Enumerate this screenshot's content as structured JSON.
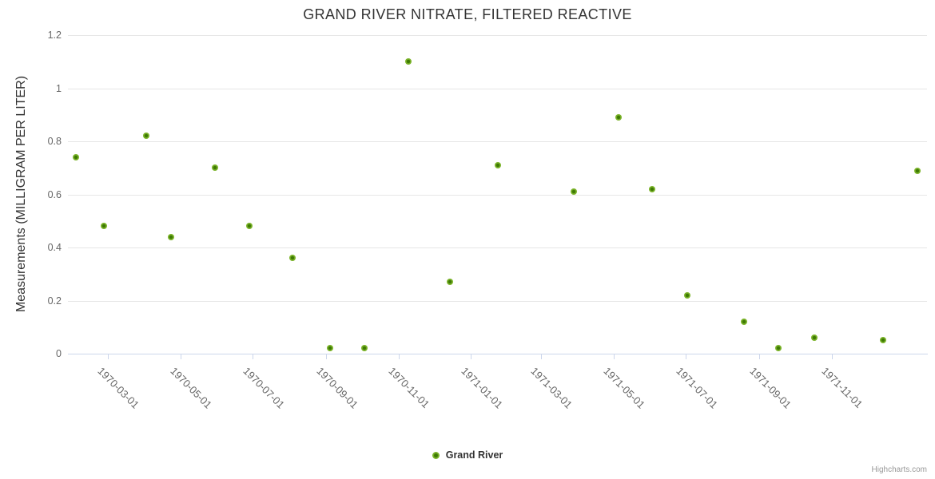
{
  "chart": {
    "title": "GRAND RIVER NITRATE, FILTERED REACTIVE",
    "y_axis_title": "Measurements (MILLIGRAM PER LITER)",
    "legend_label": "Grand River",
    "credits": "Highcharts.com"
  },
  "colors": {
    "marker_fill": "#7cb42a",
    "marker_core": "#3e7a04",
    "grid_line": "#e6e6e6",
    "axis_line": "#ccd6eb",
    "title_text": "#333333",
    "axis_label_text": "#666666",
    "credits_text": "#999999"
  },
  "chart_data": {
    "type": "scatter",
    "title": "GRAND RIVER NITRATE, FILTERED REACTIVE",
    "xlabel": "",
    "ylabel": "Measurements (MILLIGRAM PER LITER)",
    "ylim": [
      0,
      1.2
    ],
    "y_tick_labels": [
      "0",
      "0.2",
      "0.4",
      "0.6",
      "0.8",
      "1",
      "1.2"
    ],
    "x_range": [
      "1970-01-26",
      "1972-01-20"
    ],
    "x_tick_labels": [
      "1970-03-01",
      "1970-05-01",
      "1970-07-01",
      "1970-09-01",
      "1970-11-01",
      "1971-01-01",
      "1971-03-01",
      "1971-05-01",
      "1971-07-01",
      "1971-09-01",
      "1971-11-01"
    ],
    "grid": "horizontal-only",
    "legend_position": "bottom-center",
    "series": [
      {
        "name": "Grand River",
        "points": [
          [
            "1970-02-02",
            0.74
          ],
          [
            "1970-02-25",
            0.48
          ],
          [
            "1970-04-02",
            0.82
          ],
          [
            "1970-04-23",
            0.44
          ],
          [
            "1970-05-30",
            0.7
          ],
          [
            "1970-06-28",
            0.48
          ],
          [
            "1970-08-03",
            0.36
          ],
          [
            "1970-09-04",
            0.02
          ],
          [
            "1970-10-03",
            0.02
          ],
          [
            "1970-11-09",
            1.1
          ],
          [
            "1970-12-14",
            0.27
          ],
          [
            "1971-01-23",
            0.71
          ],
          [
            "1971-03-28",
            0.61
          ],
          [
            "1971-05-05",
            0.89
          ],
          [
            "1971-06-02",
            0.62
          ],
          [
            "1971-07-02",
            0.22
          ],
          [
            "1971-08-19",
            0.12
          ],
          [
            "1971-09-17",
            0.02
          ],
          [
            "1971-10-17",
            0.06
          ],
          [
            "1971-12-14",
            0.05
          ],
          [
            "1972-01-12",
            0.69
          ]
        ]
      }
    ]
  }
}
